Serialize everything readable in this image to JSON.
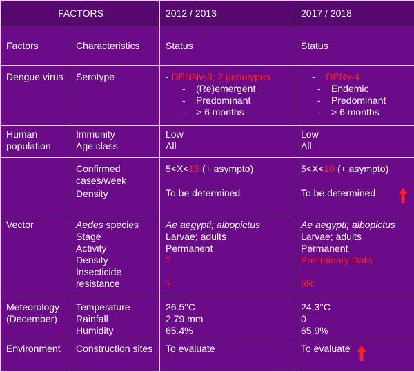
{
  "header": {
    "col1": "FACTORS",
    "col3": "2012 / 2013",
    "col4": "2017 / 2018"
  },
  "subheader": {
    "factors": "Factors",
    "characteristics": "Characteristics",
    "status1": "Status",
    "status2": "Status"
  },
  "dengue": {
    "factor": "Dengue virus",
    "characteristic": "Serotype",
    "y1_headline": "DENNv-3; 2 genotypes",
    "y1_items": [
      "(Re)emergent",
      "Predominant",
      "> 6 months"
    ],
    "y2_headline": "DENv-4",
    "y2_items": [
      "Endemic",
      "Predominant",
      "> 6 months"
    ]
  },
  "human": {
    "factor": "Human population",
    "char1": "Immunity",
    "char2": "Age class",
    "y1_val1": "Low",
    "y1_val2": "All",
    "y2_val1": "Low",
    "y2_val2": "All"
  },
  "cases": {
    "char1": "Confirmed cases/week",
    "char2": "Density",
    "y1_prefix": "5<X<",
    "y1_num": "15",
    "y1_suffix": " (+ asympto)",
    "y1_density": "To be determined",
    "y2_prefix": "5<X<",
    "y2_num": "10",
    "y2_suffix": " (+ asympto)",
    "y2_density": "To be determined"
  },
  "vector": {
    "factor": "Vector",
    "char_species": "Aedes",
    "char_species_rest": " species",
    "char_stage": "Stage",
    "char_activity": "Activity",
    "char_density": "Density",
    "char_insecticide": "Insecticide resistance",
    "y1_species": "Ae aegypti; albopictus",
    "y1_stage": "Larvae; adults",
    "y1_activity": "Permanent",
    "y1_density": "?",
    "y1_resistance": "?",
    "y2_species": "Ae aegypti; albopictus",
    "y2_stage": "Larvae; adults",
    "y2_activity": "Permanent",
    "y2_density": "Preliminary Data",
    "y2_resistance": "I/R"
  },
  "meteo": {
    "factor": "Meteorology (December)",
    "char1": "Temperature",
    "char2": "Rainfall",
    "char3": "Humidity",
    "y1_temp": "26.5°C",
    "y1_rain": "2.79 mm",
    "y1_hum": "65.4%",
    "y2_temp": "24.3°C",
    "y2_rain": "0",
    "y2_hum": "65.9%"
  },
  "environment": {
    "factor": "Environment",
    "characteristic": "Construction sites",
    "y1": "To evaluate",
    "y2": "To evaluate"
  },
  "colors": {
    "background": "#6b0b8a",
    "header_bg": "#56086f",
    "highlight": "#ff2020",
    "text": "#ffffff",
    "grid": "#e6d3f0"
  },
  "icons": [
    "up-arrow-icon"
  ]
}
